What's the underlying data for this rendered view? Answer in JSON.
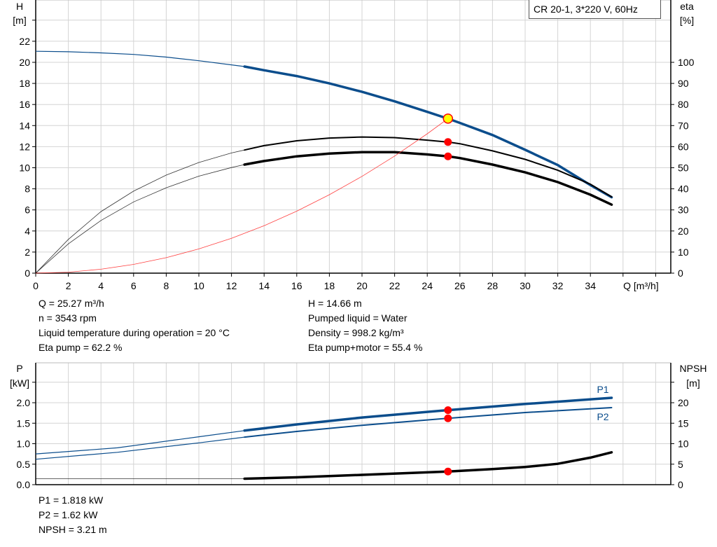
{
  "chart_data": [
    {
      "type": "line",
      "title": "CR 20-1, 3*220 V, 60Hz",
      "xlabel": "Q [m³/h]",
      "ylabel_left": [
        "H",
        "[m]"
      ],
      "ylabel_right": [
        "eta",
        "[%]"
      ],
      "xlim": [
        0,
        39
      ],
      "ylim_left": [
        0,
        26
      ],
      "ylim_right": [
        0,
        130
      ],
      "x_ticks": [
        "0",
        "2",
        "4",
        "6",
        "8",
        "10",
        "12",
        "14",
        "16",
        "18",
        "20",
        "22",
        "24",
        "26",
        "28",
        "30",
        "32",
        "34"
      ],
      "y_left_ticks": [
        "0",
        "2",
        "4",
        "6",
        "8",
        "10",
        "12",
        "14",
        "16",
        "18",
        "20",
        "22"
      ],
      "y_right_ticks": [
        "0",
        "10",
        "20",
        "30",
        "40",
        "50",
        "60",
        "70",
        "80",
        "90",
        "100"
      ],
      "grid": true,
      "series": [
        {
          "key": "head",
          "axis": "left",
          "color": "#0b4d8c",
          "thick_from": 12.8,
          "x": [
            0,
            2,
            4,
            6,
            8,
            10,
            12.8,
            14,
            16,
            18,
            20,
            22,
            24,
            25.27,
            26,
            28,
            30,
            32,
            34,
            35.3
          ],
          "y": [
            21.05,
            21.0,
            20.9,
            20.75,
            20.5,
            20.15,
            19.6,
            19.25,
            18.7,
            18.0,
            17.2,
            16.3,
            15.3,
            14.66,
            14.25,
            13.1,
            11.7,
            10.25,
            8.35,
            7.2
          ]
        },
        {
          "key": "eta_pump",
          "axis": "right",
          "color": "#000000",
          "thick_from": 12.8,
          "x": [
            0,
            2,
            4,
            6,
            8,
            10,
            12,
            12.8,
            14,
            16,
            18,
            20,
            22,
            24,
            25.27,
            26,
            28,
            30,
            32,
            34,
            35.3
          ],
          "y": [
            0,
            16,
            29.2,
            38.9,
            46.5,
            52.5,
            57,
            58.4,
            60.5,
            62.8,
            64.1,
            64.6,
            64.3,
            63.1,
            62.2,
            61.4,
            58,
            54,
            48.8,
            42.2,
            36.2
          ]
        },
        {
          "key": "eta_pump_motor",
          "axis": "right",
          "color": "#000000",
          "thick_from": 12.8,
          "x": [
            0,
            2,
            4,
            6,
            8,
            10,
            12,
            12.8,
            14,
            16,
            18,
            20,
            22,
            24,
            25.27,
            26,
            28,
            30,
            32,
            34,
            35.3
          ],
          "y": [
            0,
            13.9,
            25,
            33.8,
            40.5,
            46,
            50.1,
            51.5,
            53.2,
            55.4,
            56.7,
            57.4,
            57.4,
            56.3,
            55.4,
            54.6,
            51.5,
            47.8,
            43.2,
            37.2,
            32.5
          ]
        },
        {
          "key": "system_curve",
          "axis": "left",
          "color": "#ff4040",
          "x": [
            0,
            2,
            4,
            6,
            8,
            10,
            12,
            14,
            16,
            18,
            20,
            22,
            24,
            25.27
          ],
          "y": [
            0,
            0.09,
            0.37,
            0.83,
            1.47,
            2.3,
            3.31,
            4.5,
            5.88,
            7.44,
            9.18,
            11.11,
            13.22,
            14.66
          ]
        }
      ],
      "operating_points": [
        {
          "x": 25.27,
          "y": 14.66,
          "axis": "left",
          "fill": "#ffff00"
        },
        {
          "x": 25.27,
          "y": 62.2,
          "axis": "right",
          "fill": "#ff0000"
        },
        {
          "x": 25.27,
          "y": 55.4,
          "axis": "right",
          "fill": "#ff0000"
        }
      ]
    },
    {
      "type": "line",
      "ylabel_left": [
        "P",
        "[kW]"
      ],
      "ylabel_right": [
        "NPSH",
        "[m]"
      ],
      "xlim": [
        0,
        39
      ],
      "ylim_left": [
        0,
        3.0
      ],
      "ylim_right": [
        0,
        30
      ],
      "y_left_ticks": [
        "0.0",
        "0.5",
        "1.0",
        "1.5",
        "2.0"
      ],
      "y_right_ticks": [
        "0",
        "5",
        "10",
        "15",
        "20"
      ],
      "grid": true,
      "series": [
        {
          "name": "P1",
          "axis": "left",
          "color": "#0b4d8c",
          "thick_from": 12.8,
          "x": [
            0,
            5,
            10,
            12.8,
            16,
            20,
            25.27,
            30,
            35.3
          ],
          "y": [
            0.75,
            0.9,
            1.17,
            1.32,
            1.47,
            1.64,
            1.818,
            1.97,
            2.12
          ]
        },
        {
          "name": "P2",
          "axis": "left",
          "color": "#0b4d8c",
          "thick_from": 12.8,
          "x": [
            0,
            5,
            10,
            12.8,
            16,
            20,
            25.27,
            30,
            35.3
          ],
          "y": [
            0.62,
            0.79,
            1.02,
            1.16,
            1.3,
            1.45,
            1.62,
            1.76,
            1.88
          ]
        },
        {
          "key": "npsh",
          "axis": "right",
          "color": "#000000",
          "thick_from": 12.8,
          "x": [
            0,
            12.8,
            16,
            20,
            25.27,
            28,
            30,
            32,
            34,
            35.3
          ],
          "y": [
            1.45,
            1.45,
            1.8,
            2.4,
            3.21,
            3.8,
            4.3,
            5.1,
            6.6,
            7.9
          ]
        }
      ],
      "operating_points": [
        {
          "x": 25.27,
          "y": 1.818,
          "axis": "left",
          "fill": "#ff0000"
        },
        {
          "x": 25.27,
          "y": 1.62,
          "axis": "left",
          "fill": "#ff0000"
        },
        {
          "x": 25.27,
          "y": 3.21,
          "axis": "right",
          "fill": "#ff0000"
        }
      ]
    }
  ],
  "info_top": {
    "left": [
      "Q = 25.27 m³/h",
      "n = 3543 rpm",
      "Liquid temperature during operation = 20 °C",
      "Eta pump = 62.2 %"
    ],
    "right": [
      "H = 14.66 m",
      "Pumped liquid = Water",
      "Density = 998.2 kg/m³",
      "Eta pump+motor = 55.4 %"
    ]
  },
  "info_bottom": [
    "P1 = 1.818 kW",
    "P2 = 1.62 kW",
    "NPSH = 3.21 m"
  ]
}
